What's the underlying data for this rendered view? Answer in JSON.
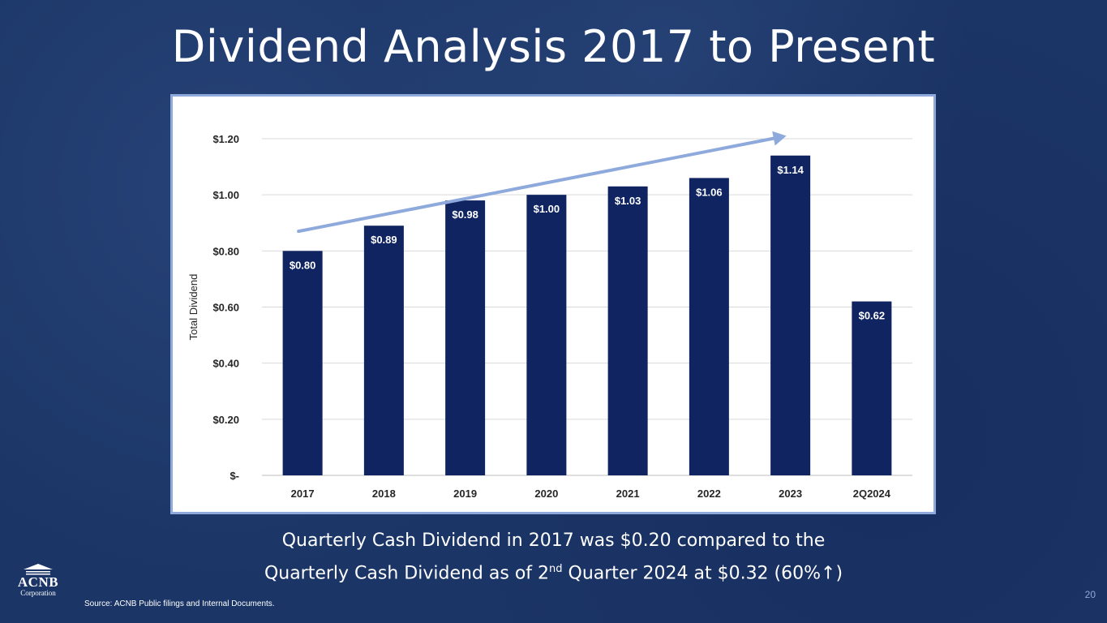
{
  "slide": {
    "title": "Dividend Analysis 2017 to Present",
    "caption_line1": "Quarterly Cash Dividend in 2017 was $0.20 compared to the",
    "caption_line2_pre": "Quarterly Cash Dividend as of 2",
    "caption_line2_sup": "nd",
    "caption_line2_post": " Quarter 2024 at $0.32 (60%↑)",
    "source": "Source: ACNB Public filings and Internal Documents.",
    "page_number": "20",
    "logo_name": "ACNB",
    "logo_sub": "Corporation"
  },
  "colors": {
    "background": "#1b3566",
    "bar": "#0f2461",
    "trend_arrow": "#8ea9db",
    "frame_border": "#8ea9db"
  },
  "chart_data": {
    "type": "bar",
    "title": "",
    "xlabel": "",
    "ylabel": "Total Dividend",
    "categories": [
      "2017",
      "2018",
      "2019",
      "2020",
      "2021",
      "2022",
      "2023",
      "2Q2024"
    ],
    "values": [
      0.8,
      0.89,
      0.98,
      1.0,
      1.03,
      1.06,
      1.14,
      0.62
    ],
    "data_labels": [
      "$0.80",
      "$0.89",
      "$0.98",
      "$1.00",
      "$1.03",
      "$1.06",
      "$1.14",
      "$0.62"
    ],
    "yticks": [
      0,
      0.2,
      0.4,
      0.6,
      0.8,
      1.0,
      1.2
    ],
    "ytick_labels": [
      "$-",
      "$0.20",
      "$0.40",
      "$0.60",
      "$0.80",
      "$1.00",
      "$1.20"
    ],
    "ylim": [
      0,
      1.2
    ],
    "grid": true,
    "legend": "none",
    "annotations": [
      {
        "type": "trend-arrow",
        "from_category": "2017",
        "to_category": "2023",
        "from_value": 0.87,
        "to_value": 1.21
      }
    ]
  }
}
